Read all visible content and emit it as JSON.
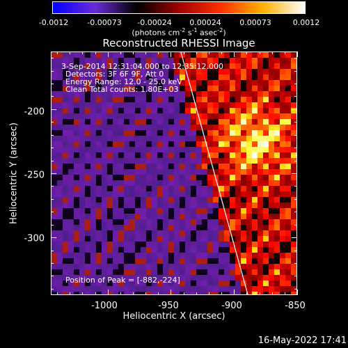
{
  "colorbar": {
    "ticks": [
      "-0.0012",
      "-0.00073",
      "-0.00024",
      "0.00024",
      "0.00073",
      "0.0012"
    ],
    "units_main": "(photons cm",
    "units_sup1": "-2",
    "units_mid1": " s",
    "units_sup2": "-1",
    "units_mid2": " asec",
    "units_sup3": "-2",
    "units_end": ")",
    "colors": {
      "negative_extreme": "#0000ff",
      "negative_mid": "#6a2bd8",
      "zero": "#000000",
      "positive_low": "#a00000",
      "positive_mid": "#ff3000",
      "positive_high": "#ffb000",
      "positive_extreme": "#ffffff"
    }
  },
  "plot": {
    "title": "Reconstructed RHESSI Image",
    "annotations": {
      "time_range": "3-Sep-2014 12:31:04.000 to 12:35:12.000",
      "detectors": "Detectors: 3F 6F 9F, Att 0",
      "energy": "Energy Range: 12.0 - 25.0 keV",
      "clean": "Clean    Total counts: 1.80E+03",
      "peak": "Position of Peak = [-882,-224]"
    },
    "xlabel": "Heliocentric X (arcsec)",
    "ylabel": "Heliocentric Y (arcsec)",
    "xticks": [
      "-1000",
      "-950",
      "-900",
      "-850"
    ],
    "yticks": [
      "-200",
      "-250",
      "-300"
    ],
    "x_range": [
      -1045,
      -850
    ],
    "y_range": [
      -345,
      -155
    ],
    "peak_position": [
      -882,
      -224
    ]
  },
  "footer": {
    "date": "16-May-2022 17:41"
  }
}
